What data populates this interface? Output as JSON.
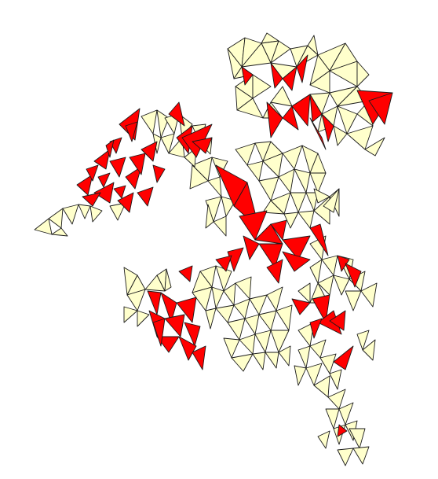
{
  "figure": {
    "kind": "triangle-mesh",
    "colors": {
      "background": "#ffffff",
      "plain_fill": "#ffffcc",
      "highlight_fill": "#ff0000",
      "edge": "#1a1a1a"
    }
  }
}
